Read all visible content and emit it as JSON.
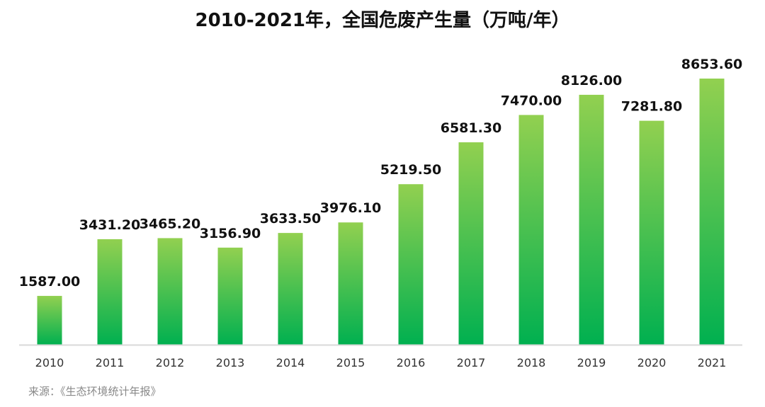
{
  "chart_data": {
    "type": "bar",
    "title": "2010-2021年，全国危废产生量（万吨/年）",
    "xlabel": "",
    "ylabel": "",
    "ylim": [
      0,
      10000
    ],
    "grid": false,
    "categories": [
      "2010",
      "2011",
      "2012",
      "2013",
      "2014",
      "2015",
      "2016",
      "2017",
      "2018",
      "2019",
      "2020",
      "2021"
    ],
    "values": [
      1587.0,
      3431.2,
      3465.2,
      3156.9,
      3633.5,
      3976.1,
      5219.5,
      6581.3,
      7470.0,
      8126.0,
      7281.8,
      8653.6
    ],
    "value_labels": [
      "1587.00",
      "3431.20",
      "3465.20",
      "3156.90",
      "3633.50",
      "3976.10",
      "5219.50",
      "6581.30",
      "7470.00",
      "8126.00",
      "7281.80",
      "8653.60"
    ],
    "colors": {
      "bar_top": "#92d050",
      "bar_bottom": "#00b050",
      "axis": "#d9d9d9"
    }
  },
  "source": "来源：《生态环境统计年报》"
}
